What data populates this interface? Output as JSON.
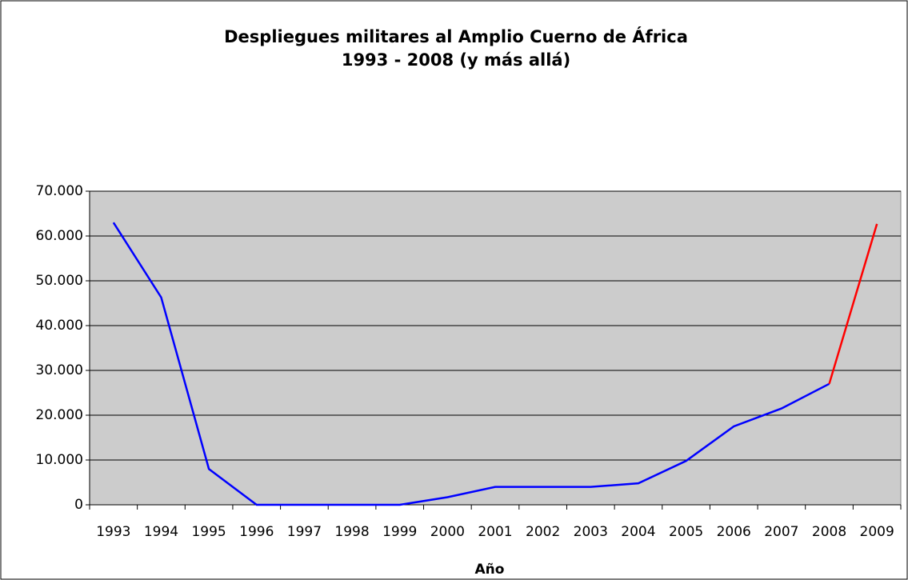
{
  "chart_data": {
    "type": "line",
    "title": [
      "Despliegues militares al Amplio Cuerno de África",
      "1993 - 2008 (y más allá)"
    ],
    "xlabel": "Año",
    "categories": [
      "1993",
      "1994",
      "1995",
      "1996",
      "1997",
      "1998",
      "1999",
      "2000",
      "2001",
      "2002",
      "2003",
      "2004",
      "2005",
      "2006",
      "2007",
      "2008",
      "2009"
    ],
    "series": [
      {
        "color": "#0000ff",
        "values": [
          63000,
          46300,
          8000,
          0,
          0,
          0,
          0,
          1700,
          4000,
          4000,
          4000,
          4800,
          9800,
          17500,
          21500,
          27000,
          null
        ]
      },
      {
        "color": "#ff0000",
        "values": [
          null,
          null,
          null,
          null,
          null,
          null,
          null,
          null,
          null,
          null,
          null,
          null,
          null,
          null,
          null,
          27000,
          62700
        ]
      }
    ],
    "ylim": [
      0,
      70000
    ],
    "yticks": [
      0,
      {
        "value": 10000,
        "label": "10.000"
      },
      {
        "value": 20000,
        "label": "20.000"
      },
      {
        "value": 30000,
        "label": "30.000"
      },
      {
        "value": 40000,
        "label": "40.000"
      },
      {
        "value": 50000,
        "label": "50.000"
      },
      {
        "value": 60000,
        "label": "60.000"
      },
      {
        "value": 70000,
        "label": "70.000"
      }
    ],
    "grid": true,
    "plot_background": "#cccccc"
  }
}
